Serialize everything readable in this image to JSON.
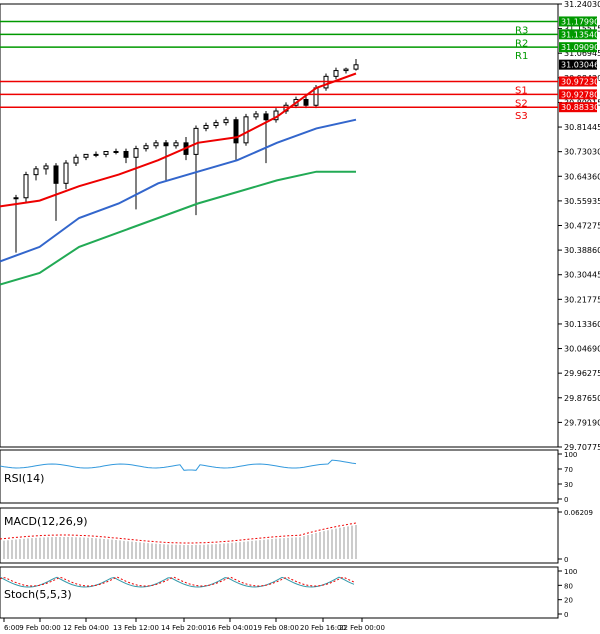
{
  "chart_data": {
    "type": "candlestick",
    "price_axis": {
      "range": [
        29.70775,
        31.2403
      ],
      "ticks": [
        "31.24030",
        "31.15515",
        "31.06945",
        "30.98430",
        "30.89915",
        "30.81445",
        "30.73030",
        "30.64360",
        "30.55935",
        "30.47275",
        "30.38860",
        "30.30445",
        "30.21775",
        "30.13360",
        "30.04690",
        "29.96275",
        "29.87650",
        "29.79190",
        "29.70775"
      ]
    },
    "current_price": {
      "value": 31.03046,
      "label": "31.03046"
    },
    "levels": [
      {
        "name": "R3",
        "value": 31.1799,
        "label": "31.17990",
        "color": "#009900"
      },
      {
        "name": "R2",
        "value": 31.1354,
        "label": "31.13540",
        "color": "#009900"
      },
      {
        "name": "R1",
        "value": 31.0909,
        "label": "31.09090",
        "color": "#009900"
      },
      {
        "name": "S1",
        "value": 30.9723,
        "label": "30.97230",
        "color": "#ee0000"
      },
      {
        "name": "S2",
        "value": 30.9278,
        "label": "30.92780",
        "color": "#ee0000"
      },
      {
        "name": "S3",
        "value": 30.8833,
        "label": "30.88330",
        "color": "#ee0000"
      }
    ],
    "x_axis_labels": [
      "6:00",
      "9 Feb 00:00",
      "12 Feb 04:00",
      "13 Feb 12:00",
      "14 Feb 20:00",
      "16 Feb 04:00",
      "19 Feb 08:00",
      "20 Feb 16:00",
      "22 Feb 00:00"
    ],
    "candles": [
      {
        "o": 30.57,
        "h": 30.58,
        "l": 30.38,
        "c": 30.57
      },
      {
        "o": 30.57,
        "h": 30.66,
        "l": 30.55,
        "c": 30.65
      },
      {
        "o": 30.65,
        "h": 30.68,
        "l": 30.63,
        "c": 30.67
      },
      {
        "o": 30.67,
        "h": 30.69,
        "l": 30.65,
        "c": 30.68
      },
      {
        "o": 30.68,
        "h": 30.69,
        "l": 30.49,
        "c": 30.62
      },
      {
        "o": 30.62,
        "h": 30.7,
        "l": 30.6,
        "c": 30.69
      },
      {
        "o": 30.69,
        "h": 30.72,
        "l": 30.68,
        "c": 30.71
      },
      {
        "o": 30.71,
        "h": 30.72,
        "l": 30.7,
        "c": 30.72
      },
      {
        "o": 30.72,
        "h": 30.73,
        "l": 30.71,
        "c": 30.72
      },
      {
        "o": 30.72,
        "h": 30.73,
        "l": 30.71,
        "c": 30.73
      },
      {
        "o": 30.73,
        "h": 30.74,
        "l": 30.72,
        "c": 30.73
      },
      {
        "o": 30.73,
        "h": 30.74,
        "l": 30.69,
        "c": 30.71
      },
      {
        "o": 30.71,
        "h": 30.75,
        "l": 30.53,
        "c": 30.74
      },
      {
        "o": 30.74,
        "h": 30.76,
        "l": 30.73,
        "c": 30.75
      },
      {
        "o": 30.75,
        "h": 30.77,
        "l": 30.74,
        "c": 30.76
      },
      {
        "o": 30.76,
        "h": 30.77,
        "l": 30.63,
        "c": 30.75
      },
      {
        "o": 30.75,
        "h": 30.77,
        "l": 30.74,
        "c": 30.76
      },
      {
        "o": 30.76,
        "h": 30.78,
        "l": 30.7,
        "c": 30.72
      },
      {
        "o": 30.72,
        "h": 30.82,
        "l": 30.51,
        "c": 30.81
      },
      {
        "o": 30.81,
        "h": 30.83,
        "l": 30.8,
        "c": 30.82
      },
      {
        "o": 30.82,
        "h": 30.84,
        "l": 30.81,
        "c": 30.83
      },
      {
        "o": 30.83,
        "h": 30.85,
        "l": 30.82,
        "c": 30.84
      },
      {
        "o": 30.84,
        "h": 30.85,
        "l": 30.7,
        "c": 30.76
      },
      {
        "o": 30.76,
        "h": 30.86,
        "l": 30.75,
        "c": 30.85
      },
      {
        "o": 30.85,
        "h": 30.87,
        "l": 30.84,
        "c": 30.86
      },
      {
        "o": 30.86,
        "h": 30.87,
        "l": 30.69,
        "c": 30.84
      },
      {
        "o": 30.84,
        "h": 30.88,
        "l": 30.83,
        "c": 30.87
      },
      {
        "o": 30.87,
        "h": 30.9,
        "l": 30.86,
        "c": 30.89
      },
      {
        "o": 30.89,
        "h": 30.92,
        "l": 30.88,
        "c": 30.91
      },
      {
        "o": 30.91,
        "h": 30.93,
        "l": 30.88,
        "c": 30.89
      },
      {
        "o": 30.89,
        "h": 30.96,
        "l": 30.88,
        "c": 30.95
      },
      {
        "o": 30.95,
        "h": 31.0,
        "l": 30.94,
        "c": 30.99
      },
      {
        "o": 30.99,
        "h": 31.02,
        "l": 30.98,
        "c": 31.01
      },
      {
        "o": 31.01,
        "h": 31.02,
        "l": 31.0,
        "c": 31.015
      },
      {
        "o": 31.015,
        "h": 31.05,
        "l": 31.01,
        "c": 31.03
      }
    ],
    "moving_averages": [
      {
        "color": "#ee0000",
        "values": [
          [
            30.54,
            30.56
          ],
          [
            30.61,
            30.65
          ],
          [
            30.7,
            30.76
          ],
          [
            30.78,
            30.85
          ],
          [
            30.95,
            31.0
          ]
        ]
      },
      {
        "color": "#3366cc",
        "values": [
          [
            30.35,
            30.4
          ],
          [
            30.5,
            30.55
          ],
          [
            30.62,
            30.66
          ],
          [
            30.7,
            30.76
          ],
          [
            30.81,
            30.84
          ]
        ]
      },
      {
        "color": "#22aa55",
        "values": [
          [
            30.27,
            30.31
          ],
          [
            30.4,
            30.45
          ],
          [
            30.5,
            30.55
          ],
          [
            30.59,
            30.63
          ],
          [
            30.66,
            30.66
          ]
        ]
      }
    ],
    "indicators": {
      "rsi": {
        "label": "RSI(14)",
        "ticks": [
          "100",
          "70",
          "30",
          "0"
        ]
      },
      "macd": {
        "label": "MACD(12,26,9)",
        "ticks": [
          "0.06209",
          "0"
        ]
      },
      "stoch": {
        "label": "Stoch(5,5,3)",
        "ticks": [
          "100",
          "80",
          "20",
          "0"
        ]
      }
    }
  }
}
